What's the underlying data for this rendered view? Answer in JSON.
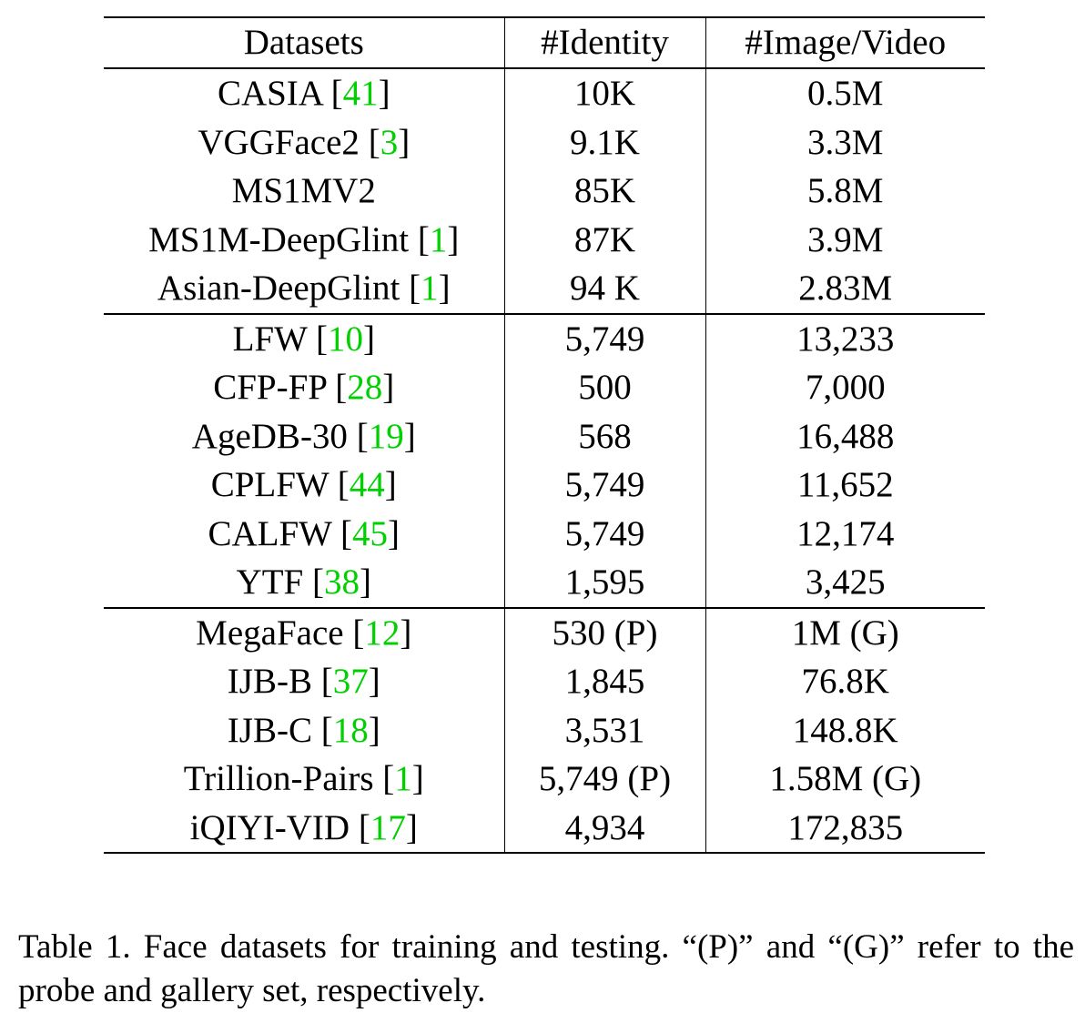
{
  "table": {
    "headers": [
      "Datasets",
      "#Identity",
      "#Image/Video"
    ],
    "groups": [
      {
        "rows": [
          {
            "name": "CASIA",
            "ref": "41",
            "identity": "10K",
            "images": "0.5M"
          },
          {
            "name": "VGGFace2",
            "ref": "3",
            "identity": "9.1K",
            "images": "3.3M"
          },
          {
            "name": "MS1MV2",
            "ref": "",
            "identity": "85K",
            "images": "5.8M"
          },
          {
            "name": "MS1M-DeepGlint",
            "ref": "1",
            "identity": "87K",
            "images": "3.9M"
          },
          {
            "name": "Asian-DeepGlint",
            "ref": "1",
            "identity": "94 K",
            "images": "2.83M"
          }
        ]
      },
      {
        "rows": [
          {
            "name": "LFW",
            "ref": "10",
            "identity": "5,749",
            "images": "13,233"
          },
          {
            "name": "CFP-FP",
            "ref": "28",
            "identity": "500",
            "images": "7,000"
          },
          {
            "name": "AgeDB-30",
            "ref": "19",
            "identity": "568",
            "images": "16,488"
          },
          {
            "name": "CPLFW",
            "ref": "44",
            "identity": "5,749",
            "images": "11,652"
          },
          {
            "name": "CALFW",
            "ref": "45",
            "identity": "5,749",
            "images": "12,174"
          },
          {
            "name": "YTF",
            "ref": "38",
            "identity": "1,595",
            "images": "3,425"
          }
        ]
      },
      {
        "rows": [
          {
            "name": "MegaFace",
            "ref": "12",
            "identity": "530 (P)",
            "images": "1M (G)"
          },
          {
            "name": "IJB-B",
            "ref": "37",
            "identity": "1,845",
            "images": "76.8K"
          },
          {
            "name": "IJB-C",
            "ref": "18",
            "identity": "3,531",
            "images": "148.8K"
          },
          {
            "name": "Trillion-Pairs",
            "ref": "1",
            "identity": "5,749 (P)",
            "images": "1.58M (G)"
          },
          {
            "name": "iQIYI-VID",
            "ref": "17",
            "identity": "4,934",
            "images": "172,835"
          }
        ]
      }
    ]
  },
  "caption": "Table 1. Face datasets for training and testing. “(P)” and “(G)” refer to the probe and gallery set, respectively.",
  "colors": {
    "citation": "#00d000",
    "text": "#000000",
    "rules": "#000000"
  }
}
